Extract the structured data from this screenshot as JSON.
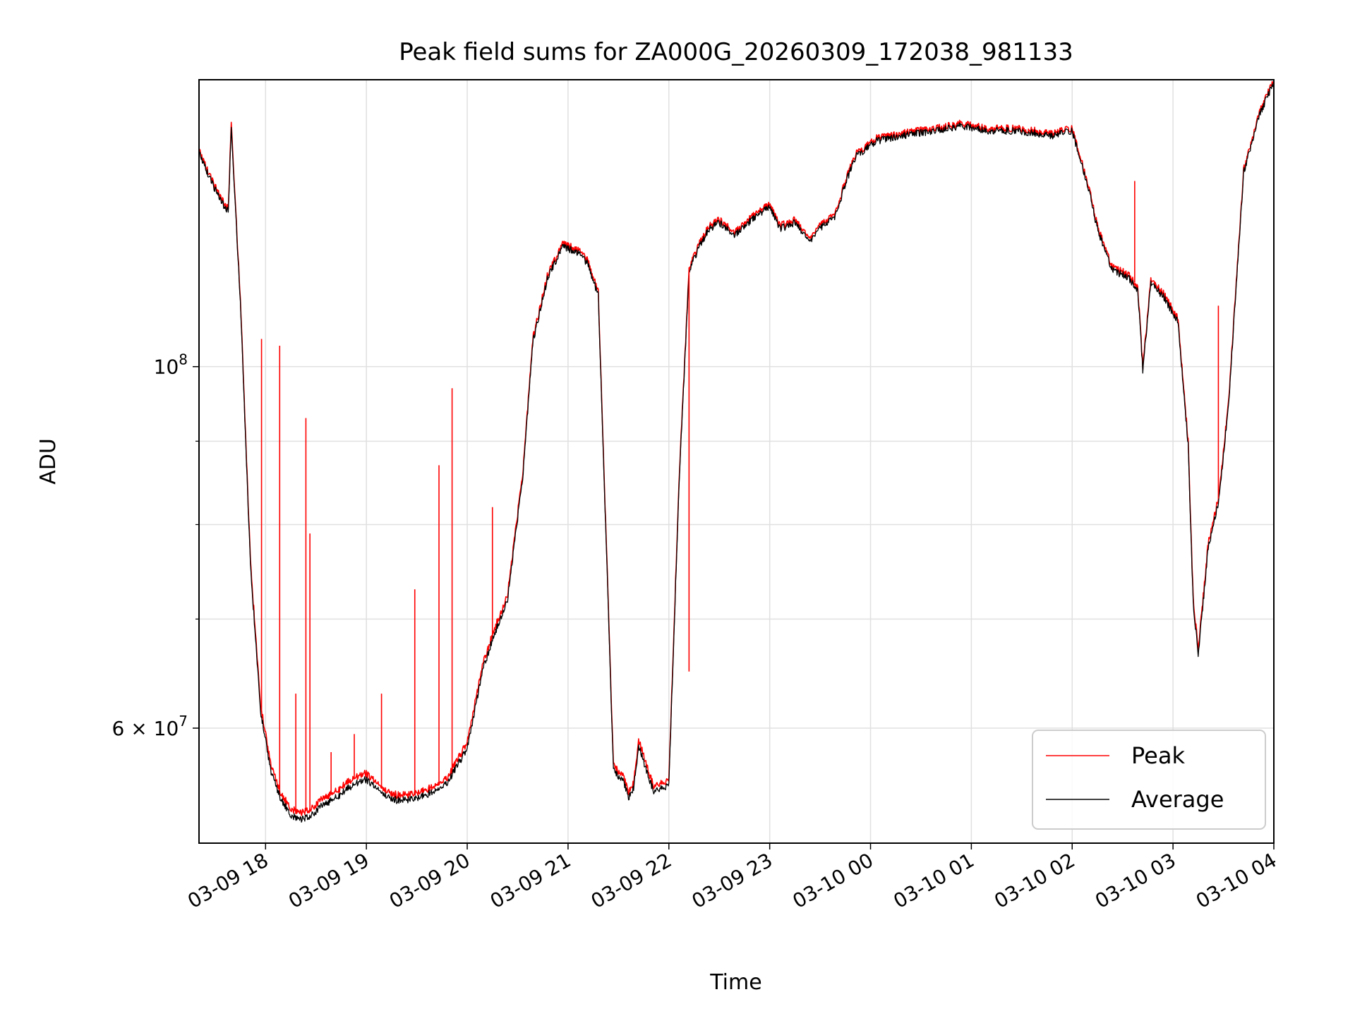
{
  "chart_data": {
    "type": "line",
    "title": "Peak field sums for ZA000G_20260309_172038_981133",
    "xlabel": "Time",
    "ylabel": "ADU",
    "yscale": "log",
    "ylim": [
      51000000,
      150000000
    ],
    "xlim_hours": [
      17.34,
      28.0
    ],
    "x_ticks": [
      {
        "hours": 18,
        "label": "03-09 18"
      },
      {
        "hours": 19,
        "label": "03-09 19"
      },
      {
        "hours": 20,
        "label": "03-09 20"
      },
      {
        "hours": 21,
        "label": "03-09 21"
      },
      {
        "hours": 22,
        "label": "03-09 22"
      },
      {
        "hours": 23,
        "label": "03-09 23"
      },
      {
        "hours": 24,
        "label": "03-10 00"
      },
      {
        "hours": 25,
        "label": "03-10 01"
      },
      {
        "hours": 26,
        "label": "03-10 02"
      },
      {
        "hours": 27,
        "label": "03-10 03"
      },
      {
        "hours": 28,
        "label": "03-10 04"
      }
    ],
    "y_major_ticks": [
      {
        "value": 60000000,
        "mantissa": "6 × 10",
        "exp": "7"
      },
      {
        "value": 100000000,
        "mantissa": "10",
        "exp": "8"
      }
    ],
    "y_minor_grid": [
      70000000,
      80000000,
      90000000
    ],
    "grid": true,
    "legend_position": "lower-right",
    "x_unit": "hours since 2026-03-09 00:00",
    "series": [
      {
        "name": "Peak",
        "color": "#ff0000",
        "x": [
          17.34,
          17.4,
          17.55,
          17.63,
          17.66,
          17.7,
          17.75,
          17.85,
          17.95,
          18.05,
          18.15,
          18.25,
          18.35,
          18.45,
          18.55,
          18.7,
          18.85,
          19.0,
          19.15,
          19.3,
          19.5,
          19.65,
          19.8,
          20.0,
          20.15,
          20.25,
          20.4,
          20.55,
          20.65,
          20.8,
          20.95,
          21.1,
          21.2,
          21.3,
          21.45,
          21.55,
          21.6,
          21.65,
          21.7,
          21.85,
          22.0,
          22.1,
          22.2,
          22.3,
          22.4,
          22.5,
          22.65,
          22.85,
          23.0,
          23.1,
          23.25,
          23.4,
          23.55,
          23.65,
          23.75,
          23.85,
          24.05,
          24.3,
          24.6,
          24.9,
          25.2,
          25.5,
          25.8,
          26.0,
          26.15,
          26.25,
          26.4,
          26.55,
          26.65,
          26.7,
          26.78,
          26.9,
          27.05,
          27.15,
          27.2,
          27.25,
          27.35,
          27.45,
          27.55,
          27.7,
          27.85,
          28.0
        ],
        "values": [
          136000000,
          133000000,
          127000000,
          125000000,
          141000000,
          126000000,
          110000000,
          76000000,
          62000000,
          57000000,
          54700000,
          53600000,
          53200000,
          53500000,
          54200000,
          54900000,
          55800000,
          56300000,
          55100000,
          54600000,
          54700000,
          55200000,
          55900000,
          58800000,
          65500000,
          68500000,
          72500000,
          86000000,
          104000000,
          114000000,
          119000000,
          118000000,
          116000000,
          111000000,
          57000000,
          56000000,
          54800000,
          55500000,
          59000000,
          55200000,
          55800000,
          85000000,
          115000000,
          119000000,
          122000000,
          123000000,
          121000000,
          124000000,
          126000000,
          122000000,
          123000000,
          120000000,
          123000000,
          124000000,
          130000000,
          135000000,
          138000000,
          139000000,
          140000000,
          141000000,
          140000000,
          140000000,
          139000000,
          140000000,
          130000000,
          122000000,
          115000000,
          114000000,
          112000000,
          100000000,
          113000000,
          111000000,
          107000000,
          90000000,
          72000000,
          67000000,
          78000000,
          83000000,
          95000000,
          132000000,
          143000000,
          150000000
        ]
      },
      {
        "name": "Average",
        "color": "#000000",
        "x": [
          17.34,
          17.4,
          17.55,
          17.63,
          17.66,
          17.7,
          17.75,
          17.85,
          17.95,
          18.05,
          18.15,
          18.25,
          18.35,
          18.45,
          18.55,
          18.7,
          18.85,
          19.0,
          19.15,
          19.3,
          19.5,
          19.65,
          19.8,
          20.0,
          20.15,
          20.25,
          20.4,
          20.55,
          20.65,
          20.8,
          20.95,
          21.1,
          21.2,
          21.3,
          21.45,
          21.55,
          21.6,
          21.65,
          21.7,
          21.85,
          22.0,
          22.1,
          22.2,
          22.3,
          22.4,
          22.5,
          22.65,
          22.85,
          23.0,
          23.1,
          23.25,
          23.4,
          23.55,
          23.65,
          23.75,
          23.85,
          24.05,
          24.3,
          24.6,
          24.9,
          25.2,
          25.5,
          25.8,
          26.0,
          26.15,
          26.25,
          26.4,
          26.55,
          26.65,
          26.7,
          26.78,
          26.9,
          27.05,
          27.15,
          27.2,
          27.25,
          27.35,
          27.45,
          27.55,
          27.7,
          27.85,
          28.0
        ],
        "values": [
          135500000,
          132500000,
          126500000,
          124500000,
          140000000,
          125500000,
          109500000,
          75500000,
          61500000,
          56500000,
          54300000,
          53100000,
          52700000,
          53000000,
          53700000,
          54400000,
          55300000,
          55800000,
          54700000,
          54200000,
          54300000,
          54800000,
          55500000,
          58300000,
          65000000,
          68000000,
          72000000,
          85500000,
          103500000,
          113500000,
          118500000,
          117500000,
          115500000,
          110500000,
          56600000,
          55600000,
          54400000,
          55100000,
          58500000,
          54800000,
          55400000,
          84500000,
          114500000,
          118500000,
          121500000,
          122500000,
          120500000,
          123500000,
          125500000,
          121500000,
          122500000,
          119500000,
          122500000,
          123500000,
          129500000,
          134500000,
          137500000,
          138500000,
          139500000,
          140500000,
          139500000,
          139500000,
          138500000,
          139500000,
          129500000,
          121500000,
          114500000,
          113500000,
          111500000,
          99500000,
          112500000,
          110500000,
          106500000,
          89500000,
          71500000,
          66500000,
          77500000,
          82500000,
          94500000,
          131500000,
          142500000,
          149500000
        ]
      }
    ],
    "peak_spikes": [
      {
        "x": 17.96,
        "value": 104000000
      },
      {
        "x": 18.14,
        "value": 103000000
      },
      {
        "x": 18.3,
        "value": 63000000
      },
      {
        "x": 18.4,
        "value": 93000000
      },
      {
        "x": 18.44,
        "value": 79000000
      },
      {
        "x": 18.65,
        "value": 58000000
      },
      {
        "x": 18.88,
        "value": 59500000
      },
      {
        "x": 19.15,
        "value": 63000000
      },
      {
        "x": 19.48,
        "value": 73000000
      },
      {
        "x": 19.72,
        "value": 87000000
      },
      {
        "x": 19.85,
        "value": 97000000
      },
      {
        "x": 20.25,
        "value": 82000000
      },
      {
        "x": 22.2,
        "value": 65000000
      },
      {
        "x": 26.62,
        "value": 130000000
      },
      {
        "x": 27.45,
        "value": 109000000
      }
    ]
  }
}
